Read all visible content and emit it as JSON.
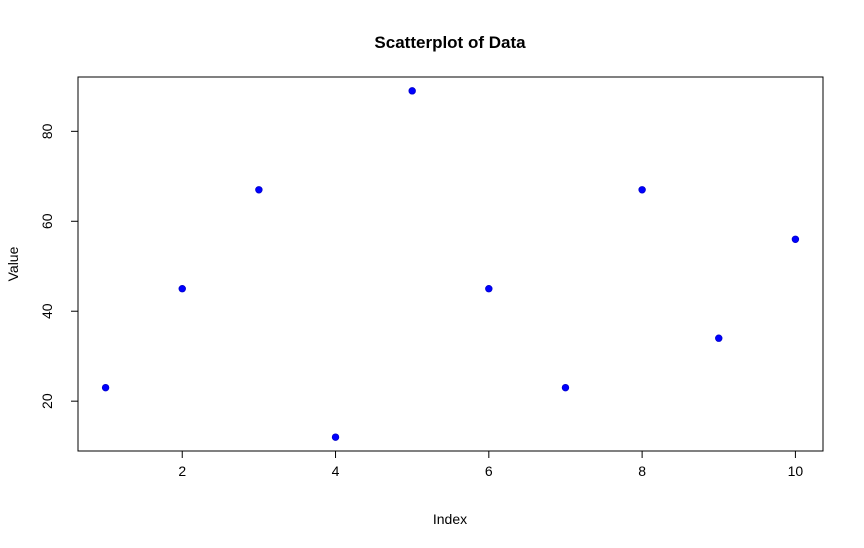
{
  "chart_data": {
    "type": "scatter",
    "title": "Scatterplot of Data",
    "xlabel": "Index",
    "ylabel": "Value",
    "x": [
      1,
      2,
      3,
      4,
      5,
      6,
      7,
      8,
      9,
      10
    ],
    "y": [
      23,
      45,
      67,
      12,
      89,
      45,
      23,
      67,
      34,
      56
    ],
    "xlim": [
      0.64,
      10.36
    ],
    "ylim": [
      8.92,
      92.08
    ],
    "xticks": [
      2,
      4,
      6,
      8,
      10
    ],
    "yticks": [
      20,
      40,
      60,
      80
    ],
    "xtick_labels": [
      "2",
      "4",
      "6",
      "8",
      "10"
    ],
    "ytick_labels": [
      "20",
      "40",
      "60",
      "80"
    ],
    "grid": false,
    "point_color": "#0000FF",
    "point_shape": "filled-circle"
  }
}
